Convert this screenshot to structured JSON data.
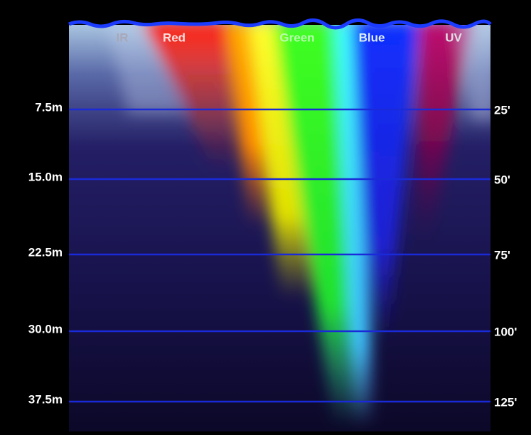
{
  "spectrum": [
    "IR",
    "Red",
    "Green",
    "Blue",
    "UV"
  ],
  "depths_m": [
    "7.5m",
    "15.0m",
    "22.5m",
    "30.0m",
    "37.5m"
  ],
  "depths_ft": [
    "25'",
    "50'",
    "75'",
    "100'",
    "125'"
  ]
}
